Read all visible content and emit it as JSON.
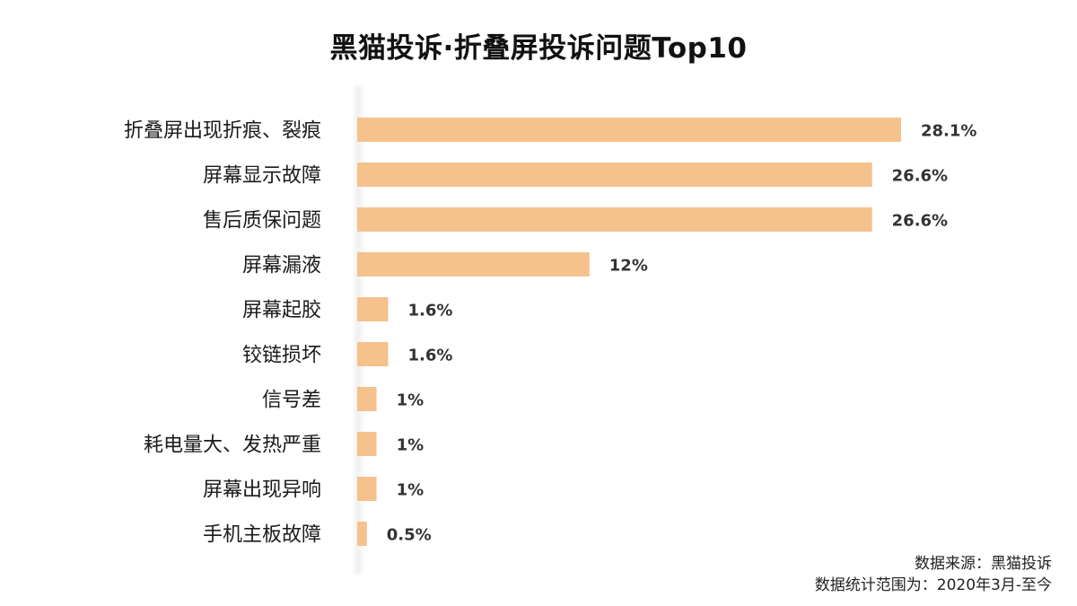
{
  "chart_data": {
    "type": "bar",
    "orientation": "horizontal",
    "title": "黑猫投诉·折叠屏投诉问题Top10",
    "categories": [
      "折叠屏出现折痕、裂痕",
      "屏幕显示故障",
      "售后质保问题",
      "屏幕漏液",
      "屏幕起胶",
      "铰链损坏",
      "信号差",
      "耗电量大、发热严重",
      "屏幕出现异响",
      "手机主板故障"
    ],
    "values": [
      28.1,
      26.6,
      26.6,
      12,
      1.6,
      1.6,
      1,
      1,
      1,
      0.5
    ],
    "value_labels": [
      "28.1%",
      "26.6%",
      "26.6%",
      "12%",
      "1.6%",
      "1.6%",
      "1%",
      "1%",
      "1%",
      "0.5%"
    ],
    "unit": "%",
    "xlim": [
      0,
      28.1
    ],
    "grid": false,
    "legend": "none",
    "bar_color": "#F5C18C",
    "label_color": "#1a1a1a",
    "value_label_color": "#333333"
  },
  "footer": {
    "source": "数据来源：黑猫投诉",
    "range": "数据统计范围为：2020年3月-至今"
  }
}
